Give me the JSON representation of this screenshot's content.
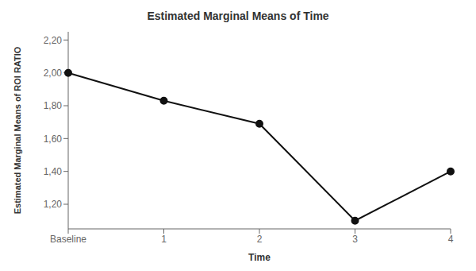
{
  "chart_data": {
    "type": "line",
    "title": "Estimated Marginal Means of Time",
    "xlabel": "Time",
    "ylabel": "Estimated Marginal Means of ROI RATIO",
    "categories": [
      "Baseline",
      "1",
      "2",
      "3",
      "4"
    ],
    "values": [
      2.0,
      1.83,
      1.69,
      1.1,
      1.4
    ],
    "color": "#111111",
    "marker": "circle",
    "ylim": [
      1.05,
      2.25
    ],
    "yticks": [
      {
        "value": 1.2,
        "label": "1,20"
      },
      {
        "value": 1.4,
        "label": "1,40"
      },
      {
        "value": 1.6,
        "label": "1,60"
      },
      {
        "value": 1.8,
        "label": "1,80"
      },
      {
        "value": 2.0,
        "label": "2,00"
      },
      {
        "value": 2.2,
        "label": "2,20"
      }
    ],
    "grid": false
  }
}
